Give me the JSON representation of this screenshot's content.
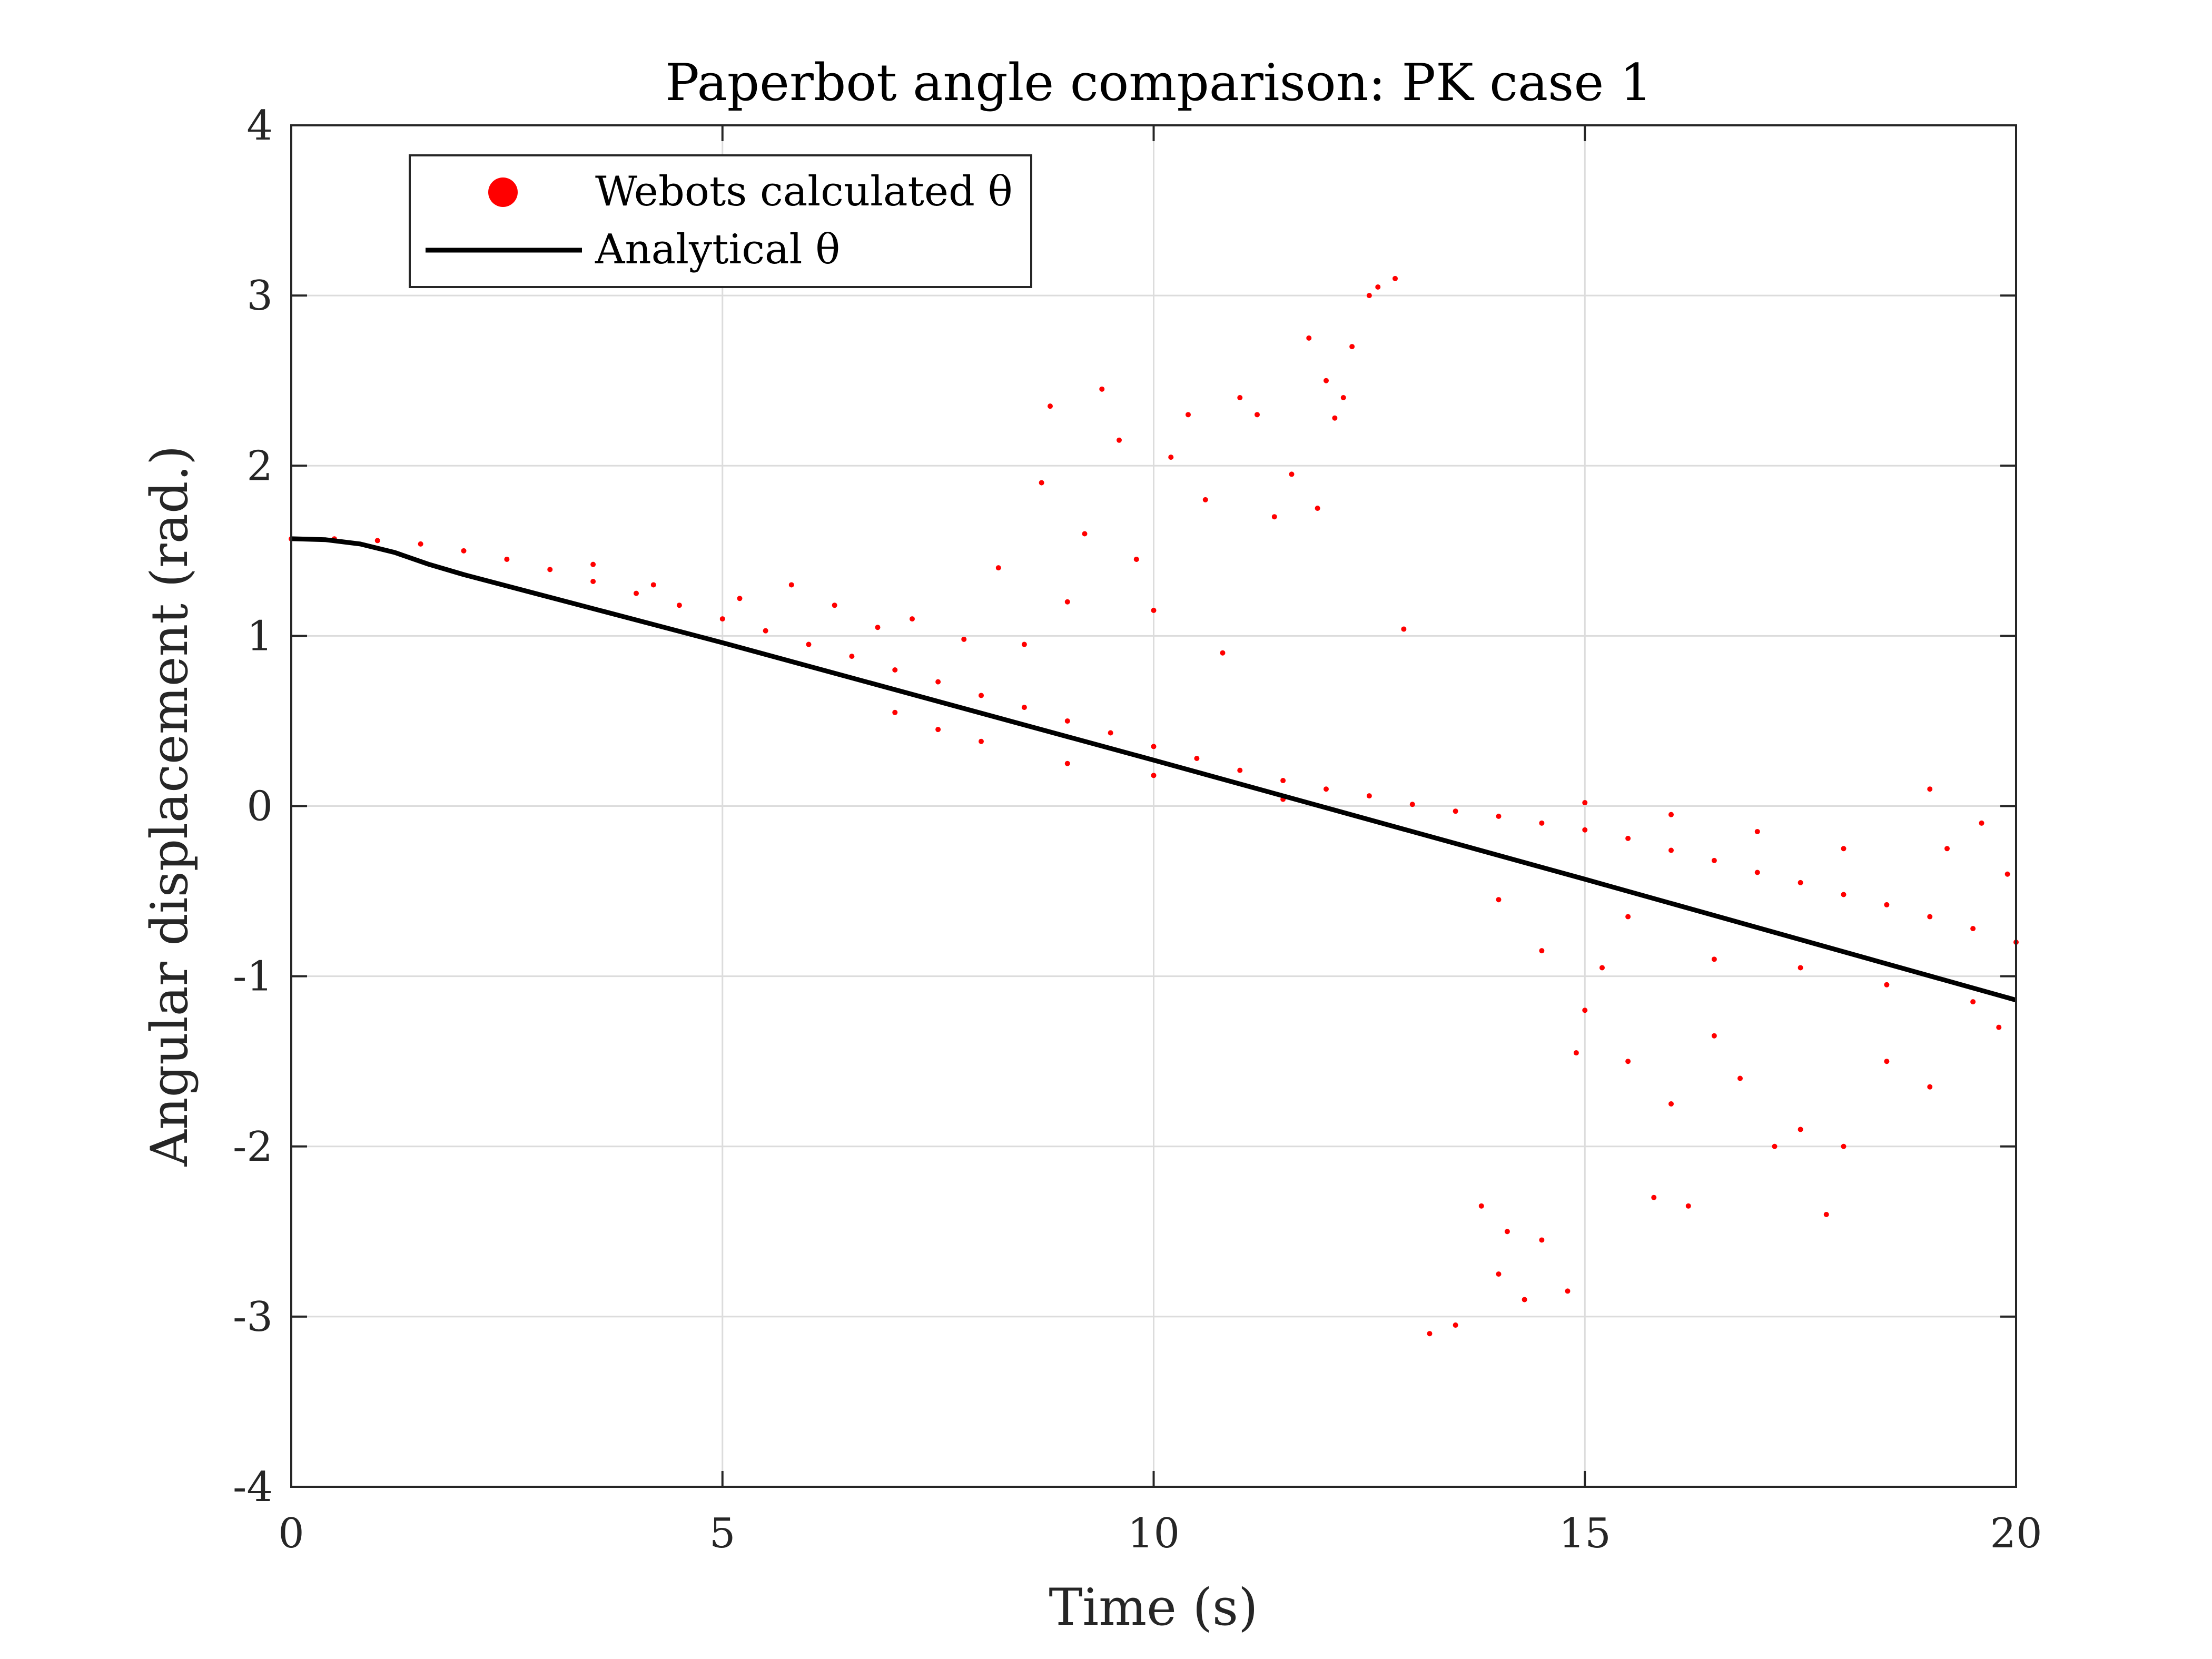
{
  "chart_data": {
    "type": "scatter",
    "title": "Paperbot angle comparison: PK case 1",
    "xlabel": "Time (s)",
    "ylabel": "Angular displacement (rad.)",
    "xlim": [
      0,
      20
    ],
    "ylim": [
      -4,
      4
    ],
    "xticks": [
      "0",
      "5",
      "10",
      "15",
      "20"
    ],
    "yticks": [
      "4",
      "3",
      "2",
      "1",
      "0",
      "-1",
      "-2",
      "-3",
      "-4"
    ],
    "grid": true,
    "legend_position": "top-left",
    "series": [
      {
        "name": "Webots calculated θ",
        "kind": "scatter",
        "color": "#ff0000",
        "points": [
          [
            0.0,
            1.57
          ],
          [
            0.5,
            1.57
          ],
          [
            1.0,
            1.56
          ],
          [
            1.5,
            1.54
          ],
          [
            2.0,
            1.5
          ],
          [
            2.5,
            1.45
          ],
          [
            3.0,
            1.39
          ],
          [
            3.5,
            1.32
          ],
          [
            4.0,
            1.25
          ],
          [
            4.5,
            1.18
          ],
          [
            5.0,
            1.1
          ],
          [
            5.5,
            1.03
          ],
          [
            6.0,
            0.95
          ],
          [
            6.5,
            0.88
          ],
          [
            7.0,
            0.8
          ],
          [
            7.5,
            0.73
          ],
          [
            8.0,
            0.65
          ],
          [
            8.5,
            0.58
          ],
          [
            9.0,
            0.5
          ],
          [
            9.5,
            0.43
          ],
          [
            10.0,
            0.35
          ],
          [
            10.5,
            0.28
          ],
          [
            11.0,
            0.21
          ],
          [
            11.5,
            0.15
          ],
          [
            12.0,
            0.1
          ],
          [
            12.5,
            0.06
          ],
          [
            13.0,
            0.01
          ],
          [
            13.5,
            -0.03
          ],
          [
            14.0,
            -0.06
          ],
          [
            14.5,
            -0.1
          ],
          [
            15.0,
            -0.14
          ],
          [
            15.5,
            -0.19
          ],
          [
            16.0,
            -0.26
          ],
          [
            16.5,
            -0.32
          ],
          [
            17.0,
            -0.39
          ],
          [
            17.5,
            -0.45
          ],
          [
            18.0,
            -0.52
          ],
          [
            18.5,
            -0.58
          ],
          [
            19.0,
            -0.65
          ],
          [
            19.5,
            -0.72
          ],
          [
            20.0,
            -0.8
          ],
          [
            3.5,
            1.42
          ],
          [
            4.2,
            1.3
          ],
          [
            5.2,
            1.22
          ],
          [
            5.8,
            1.3
          ],
          [
            6.3,
            1.18
          ],
          [
            6.8,
            1.05
          ],
          [
            7.2,
            1.1
          ],
          [
            7.8,
            0.98
          ],
          [
            8.2,
            1.4
          ],
          [
            8.5,
            0.95
          ],
          [
            8.7,
            1.9
          ],
          [
            8.8,
            2.35
          ],
          [
            9.0,
            1.2
          ],
          [
            9.2,
            1.6
          ],
          [
            9.4,
            2.45
          ],
          [
            9.6,
            2.15
          ],
          [
            9.8,
            1.45
          ],
          [
            10.0,
            1.15
          ],
          [
            10.2,
            2.05
          ],
          [
            10.4,
            2.3
          ],
          [
            10.6,
            1.8
          ],
          [
            10.8,
            0.9
          ],
          [
            11.0,
            2.4
          ],
          [
            11.2,
            2.3
          ],
          [
            11.4,
            1.7
          ],
          [
            11.6,
            1.95
          ],
          [
            11.8,
            2.75
          ],
          [
            11.9,
            1.75
          ],
          [
            12.0,
            2.5
          ],
          [
            12.1,
            2.28
          ],
          [
            12.2,
            2.4
          ],
          [
            12.3,
            2.7
          ],
          [
            12.5,
            3.0
          ],
          [
            12.6,
            3.05
          ],
          [
            12.8,
            3.1
          ],
          [
            12.9,
            1.04
          ],
          [
            7.0,
            0.55
          ],
          [
            7.5,
            0.45
          ],
          [
            8.0,
            0.38
          ],
          [
            9.0,
            0.25
          ],
          [
            10.0,
            0.18
          ],
          [
            11.5,
            0.04
          ],
          [
            13.2,
            -3.1
          ],
          [
            13.5,
            -3.05
          ],
          [
            13.8,
            -2.35
          ],
          [
            14.0,
            -2.75
          ],
          [
            14.1,
            -2.5
          ],
          [
            14.3,
            -2.9
          ],
          [
            14.5,
            -2.55
          ],
          [
            14.8,
            -2.85
          ],
          [
            14.9,
            -1.45
          ],
          [
            15.0,
            -1.2
          ],
          [
            15.2,
            -0.95
          ],
          [
            15.5,
            -1.5
          ],
          [
            15.8,
            -2.3
          ],
          [
            16.0,
            -1.75
          ],
          [
            16.2,
            -2.35
          ],
          [
            16.5,
            -1.35
          ],
          [
            16.8,
            -1.6
          ],
          [
            17.2,
            -2.0
          ],
          [
            17.5,
            -1.9
          ],
          [
            17.8,
            -2.4
          ],
          [
            18.0,
            -2.0
          ],
          [
            18.5,
            -1.5
          ],
          [
            19.0,
            -1.65
          ],
          [
            19.5,
            -1.15
          ],
          [
            19.8,
            -1.3
          ],
          [
            14.0,
            -0.55
          ],
          [
            14.5,
            -0.85
          ],
          [
            15.5,
            -0.65
          ],
          [
            16.5,
            -0.9
          ],
          [
            17.5,
            -0.95
          ],
          [
            18.5,
            -1.05
          ],
          [
            19.2,
            -0.25
          ],
          [
            19.6,
            -0.1
          ],
          [
            19.9,
            -0.4
          ],
          [
            15.0,
            0.02
          ],
          [
            16.0,
            -0.05
          ],
          [
            17.0,
            -0.15
          ],
          [
            18.0,
            -0.25
          ],
          [
            19.0,
            0.1
          ]
        ]
      },
      {
        "name": "Analytical θ",
        "kind": "line",
        "color": "#000000",
        "points": [
          [
            0.0,
            1.571
          ],
          [
            0.4,
            1.565
          ],
          [
            0.8,
            1.54
          ],
          [
            1.2,
            1.49
          ],
          [
            1.6,
            1.42
          ],
          [
            2.0,
            1.36
          ],
          [
            5.0,
            0.96
          ],
          [
            10.0,
            0.27
          ],
          [
            15.0,
            -0.43
          ],
          [
            20.0,
            -1.14
          ]
        ]
      }
    ]
  }
}
